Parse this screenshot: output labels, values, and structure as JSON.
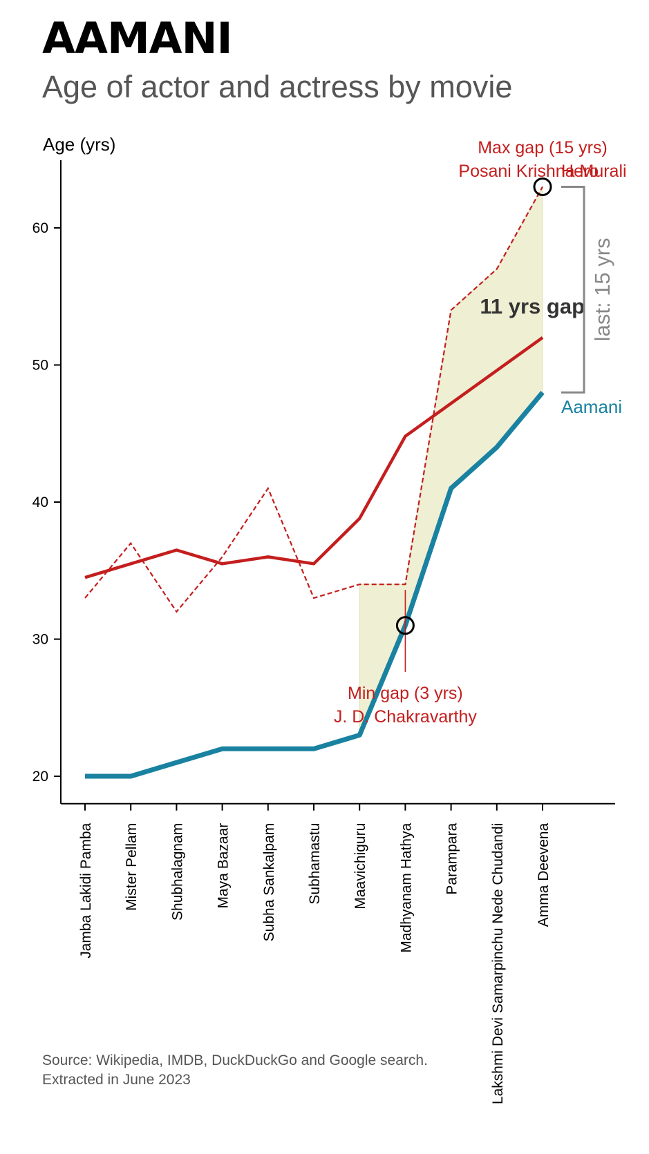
{
  "title": "AAMANI",
  "subtitle": "Age of actor and actress by movie",
  "source": {
    "line1": "Source: Wikipedia, IMDB, DuckDuckGo and Google search.",
    "line2": "Extracted in June 2023"
  },
  "colors": {
    "actress": "#1a82a1",
    "actor": "#c41e1e",
    "gap_fill": "#efefd4",
    "gap_bracket": "#888888",
    "axis": "#000000",
    "gap_label": "#333333",
    "subtitle": "#555555"
  },
  "chart_data": {
    "type": "line",
    "ylabel": "Age (yrs)",
    "ylim": [
      18,
      65
    ],
    "yticks": [
      20,
      30,
      40,
      50,
      60
    ],
    "categories": [
      "Jamba Lakidi Pamba",
      "Mister Pellam",
      "Shubhalagnam",
      "Maya Bazaar",
      "Subha Sankalpam",
      "Subhamastu",
      "Maavichiguru",
      "Madhyanam Hathya",
      "Parampara",
      "Lakshmi Devi Samarpinchu Nede Chudandi",
      "Amma Deevena"
    ],
    "series": [
      {
        "name": "Aamani",
        "role": "actress",
        "style": "solid",
        "values": [
          20,
          20,
          21,
          22,
          22,
          22,
          23,
          31,
          41,
          44,
          48
        ]
      },
      {
        "role": "co-actor",
        "style": "dashed",
        "values": [
          33,
          37,
          32,
          36,
          41,
          33,
          34,
          34,
          54,
          57,
          63
        ]
      },
      {
        "role": "co-actor trend",
        "style": "solid",
        "values": [
          34.5,
          35.5,
          36.5,
          35.5,
          36,
          35.5,
          38.8,
          44.8,
          47.2,
          49.6,
          52
        ]
      }
    ],
    "gap_shading_from_index": 6,
    "annotations": {
      "max_gap": {
        "index": 10,
        "value": 63,
        "line1": "Max gap (15 yrs)",
        "line2": "Posani Krishna Murali",
        "overlap_label": "Hero"
      },
      "min_gap": {
        "index": 7,
        "value": 31,
        "line1": "Min gap (3 yrs)",
        "line2": "J. D. Chakravarthy"
      },
      "trend_gap_label": "11 yrs gap",
      "last_gap_label": "last: 15 yrs",
      "last_gap_range": [
        48,
        63
      ],
      "series_end_label": "Aamani"
    }
  }
}
